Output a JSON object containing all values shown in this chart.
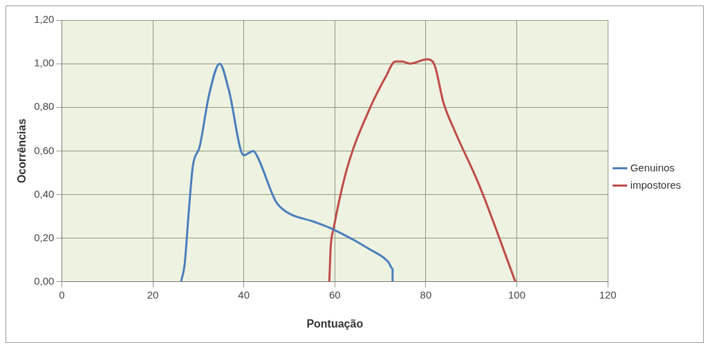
{
  "chart_data": {
    "type": "line",
    "xlabel": "Pontuação",
    "ylabel": "Ocorrências",
    "xlim": [
      0,
      120
    ],
    "xticks": [
      0,
      20,
      40,
      60,
      80,
      100,
      120
    ],
    "ylim": [
      0,
      1.2
    ],
    "yticks": [
      {
        "value": 0,
        "label": "0,00"
      },
      {
        "value": 0.2,
        "label": "0,20"
      },
      {
        "value": 0.4,
        "label": "0,40"
      },
      {
        "value": 0.6,
        "label": "0,60"
      },
      {
        "value": 0.8,
        "label": "0,80"
      },
      {
        "value": 1,
        "label": "1,00"
      },
      {
        "value": 1.2,
        "label": "1,20"
      }
    ],
    "grid": true,
    "legend": "right",
    "marker": "none",
    "line_style": "solid",
    "series": [
      {
        "name": "Genuinos",
        "color": "#4a7ebb",
        "x": [
          26.2,
          27,
          27.9,
          28.8,
          30.3,
          32.4,
          34.7,
          36.7,
          40,
          42.1,
          43.3,
          47,
          49.4,
          55.5,
          59.7,
          67.6,
          71.8,
          72.7,
          72.7
        ],
        "values": [
          0,
          0.08,
          0.32,
          0.53,
          0.62,
          0.86,
          1,
          0.88,
          0.58,
          0.6,
          0.56,
          0.37,
          0.32,
          0.275,
          0.24,
          0.15,
          0.09,
          0.06,
          0
        ]
      },
      {
        "name": "impostores",
        "color": "#be4b48",
        "x": [
          58.8,
          59.1,
          59.7,
          62.7,
          67.6,
          71.2,
          73.3,
          74.8,
          76.6,
          80.3,
          81.8,
          83.9,
          86.4,
          91.8,
          99.7
        ],
        "values": [
          0,
          0.16,
          0.24,
          0.52,
          0.79,
          0.94,
          1.01,
          1.01,
          1,
          1.02,
          1,
          0.82,
          0.69,
          0.44,
          0
        ]
      }
    ]
  }
}
